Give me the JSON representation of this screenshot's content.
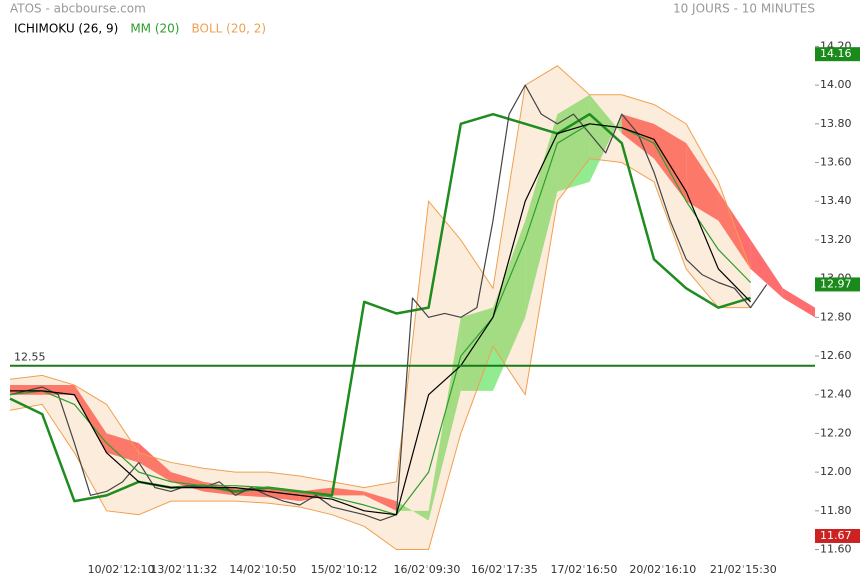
{
  "chart_data": {
    "type": "line",
    "title": "ATOS - abcbourse.com",
    "subtitle": "10 JOURS - 10 MINUTES",
    "xlim": [
      0,
      100
    ],
    "ylim": [
      11.52,
      14.44
    ],
    "xticks": [
      {
        "value": 13.8,
        "label": "10/02 12:10"
      },
      {
        "value": 21.6,
        "label": "13/02 11:32"
      },
      {
        "value": 31.4,
        "label": "14/02 10:50"
      },
      {
        "value": 41.5,
        "label": "15/02 10:12"
      },
      {
        "value": 51.8,
        "label": "16/02 09:30"
      },
      {
        "value": 61.4,
        "label": "16/02 17:35"
      },
      {
        "value": 71.3,
        "label": "17/02 16:50"
      },
      {
        "value": 81.1,
        "label": "20/02 16:10"
      },
      {
        "value": 91.1,
        "label": "21/02 15:30"
      }
    ],
    "yticks": [
      {
        "value": 11.6,
        "label": "11.60"
      },
      {
        "value": 11.8,
        "label": "11.80"
      },
      {
        "value": 12.0,
        "label": "12.00"
      },
      {
        "value": 12.2,
        "label": "12.20"
      },
      {
        "value": 12.4,
        "label": "12.40"
      },
      {
        "value": 12.6,
        "label": "12.60"
      },
      {
        "value": 12.8,
        "label": "12.80"
      },
      {
        "value": 13.0,
        "label": "13.00"
      },
      {
        "value": 13.2,
        "label": "13.20"
      },
      {
        "value": 13.4,
        "label": "13.40"
      },
      {
        "value": 13.6,
        "label": "13.60"
      },
      {
        "value": 13.8,
        "label": "13.80"
      },
      {
        "value": 14.0,
        "label": "14.00"
      },
      {
        "value": 14.2,
        "label": "14.20"
      }
    ],
    "cloud": {
      "up_color": "#7ee87e",
      "down_color": "#ff5555",
      "x": [
        0,
        4,
        8,
        12,
        16,
        20,
        24,
        28,
        32,
        36,
        40,
        44,
        48,
        52,
        56,
        60,
        64,
        68,
        72,
        76,
        80,
        84,
        88,
        92,
        96,
        100
      ],
      "span_a": [
        12.4,
        12.4,
        12.4,
        12.1,
        12.05,
        11.95,
        11.9,
        11.88,
        11.87,
        11.85,
        11.88,
        11.88,
        11.8,
        11.8,
        12.8,
        12.85,
        13.3,
        13.85,
        13.95,
        13.75,
        13.62,
        13.4,
        13.3,
        13.05,
        12.9,
        12.8
      ],
      "span_b": [
        12.45,
        12.45,
        12.45,
        12.2,
        12.15,
        12.0,
        11.95,
        11.92,
        11.92,
        11.9,
        11.92,
        11.9,
        11.85,
        11.75,
        12.42,
        12.42,
        12.8,
        13.45,
        13.5,
        13.85,
        13.8,
        13.7,
        13.45,
        13.2,
        12.95,
        12.85
      ]
    },
    "series": [
      {
        "name": "BOLL (20, 2)",
        "color": "#f0a050",
        "x": [
          0,
          4,
          8,
          12,
          16,
          20,
          24,
          28,
          32,
          36,
          40,
          44,
          48,
          52,
          56,
          60,
          64,
          68,
          72,
          76,
          80,
          84,
          88,
          92
        ],
        "upper": [
          12.48,
          12.5,
          12.45,
          12.35,
          12.1,
          12.05,
          12.02,
          12.0,
          12.0,
          11.98,
          11.95,
          11.92,
          11.95,
          13.4,
          13.2,
          12.95,
          14.0,
          14.1,
          13.95,
          13.95,
          13.9,
          13.8,
          13.5,
          13.05
        ],
        "lower": [
          12.32,
          12.35,
          12.1,
          11.8,
          11.78,
          11.85,
          11.85,
          11.85,
          11.84,
          11.82,
          11.78,
          11.72,
          11.6,
          11.6,
          12.2,
          12.65,
          12.4,
          13.4,
          13.62,
          13.6,
          13.5,
          13.05,
          12.85,
          12.85
        ]
      },
      {
        "color": "#1e8c1e",
        "style": "thick",
        "x": [
          0,
          4,
          8,
          12,
          16,
          20,
          24,
          28,
          32,
          36,
          40,
          44,
          48,
          52,
          56,
          60,
          64,
          68,
          72,
          76,
          80,
          84,
          88,
          92
        ],
        "values": [
          12.38,
          12.3,
          11.85,
          11.88,
          11.95,
          11.92,
          11.93,
          11.9,
          11.92,
          11.9,
          11.88,
          12.88,
          12.82,
          12.85,
          13.8,
          13.85,
          13.8,
          13.75,
          13.85,
          13.7,
          13.1,
          12.95,
          12.85,
          12.9
        ]
      },
      {
        "color": "#444444",
        "x": [
          0,
          2,
          4,
          6,
          8,
          10,
          12,
          14,
          16,
          18,
          20,
          22,
          24,
          26,
          28,
          30,
          32,
          34,
          36,
          38,
          40,
          42,
          44,
          46,
          48,
          50,
          52,
          54,
          56,
          58,
          60,
          62,
          64,
          66,
          68,
          70,
          72,
          74,
          76,
          78,
          80,
          82,
          84,
          86,
          88,
          90,
          92,
          94
        ],
        "values": [
          12.4,
          12.42,
          12.44,
          12.4,
          12.15,
          11.88,
          11.9,
          11.95,
          12.05,
          11.92,
          11.9,
          11.93,
          11.92,
          11.95,
          11.88,
          11.92,
          11.88,
          11.85,
          11.83,
          11.88,
          11.82,
          11.8,
          11.78,
          11.75,
          11.78,
          12.9,
          12.8,
          12.82,
          12.8,
          12.85,
          13.3,
          13.85,
          14.0,
          13.85,
          13.8,
          13.85,
          13.75,
          13.65,
          13.85,
          13.75,
          13.55,
          13.3,
          13.1,
          13.02,
          12.98,
          12.95,
          12.85,
          12.97
        ]
      },
      {
        "name": "MM (20)",
        "color": "#2e9e2e",
        "x": [
          0,
          4,
          8,
          12,
          16,
          20,
          24,
          28,
          32,
          36,
          40,
          44,
          48,
          52,
          56,
          60,
          64,
          68,
          72,
          76,
          80,
          84,
          88,
          92
        ],
        "values": [
          12.4,
          12.42,
          12.35,
          12.15,
          12.0,
          11.95,
          11.93,
          11.93,
          11.92,
          11.9,
          11.87,
          11.83,
          11.78,
          12.0,
          12.6,
          12.8,
          13.2,
          13.7,
          13.8,
          13.78,
          13.7,
          13.4,
          13.15,
          12.98
        ]
      },
      {
        "name": "ICHIMOKU (26, 9)",
        "color": "#000000",
        "x": [
          0,
          4,
          8,
          12,
          16,
          20,
          24,
          28,
          32,
          36,
          40,
          44,
          48,
          52,
          56,
          60,
          64,
          68,
          72,
          76,
          80,
          84,
          88,
          92
        ],
        "values": [
          12.42,
          12.42,
          12.4,
          12.1,
          11.95,
          11.92,
          11.92,
          11.92,
          11.9,
          11.88,
          11.86,
          11.8,
          11.78,
          12.4,
          12.55,
          12.8,
          13.4,
          13.75,
          13.8,
          13.78,
          13.72,
          13.45,
          13.05,
          12.88
        ]
      }
    ],
    "hline": {
      "value": 12.55,
      "color": "#1a7a1a"
    },
    "price_tags": [
      {
        "value": 14.16,
        "color": "#1a8a1a"
      },
      {
        "value": 12.97,
        "color": "#1a8a1a"
      },
      {
        "value": 11.67,
        "color": "#cc2222"
      }
    ]
  }
}
